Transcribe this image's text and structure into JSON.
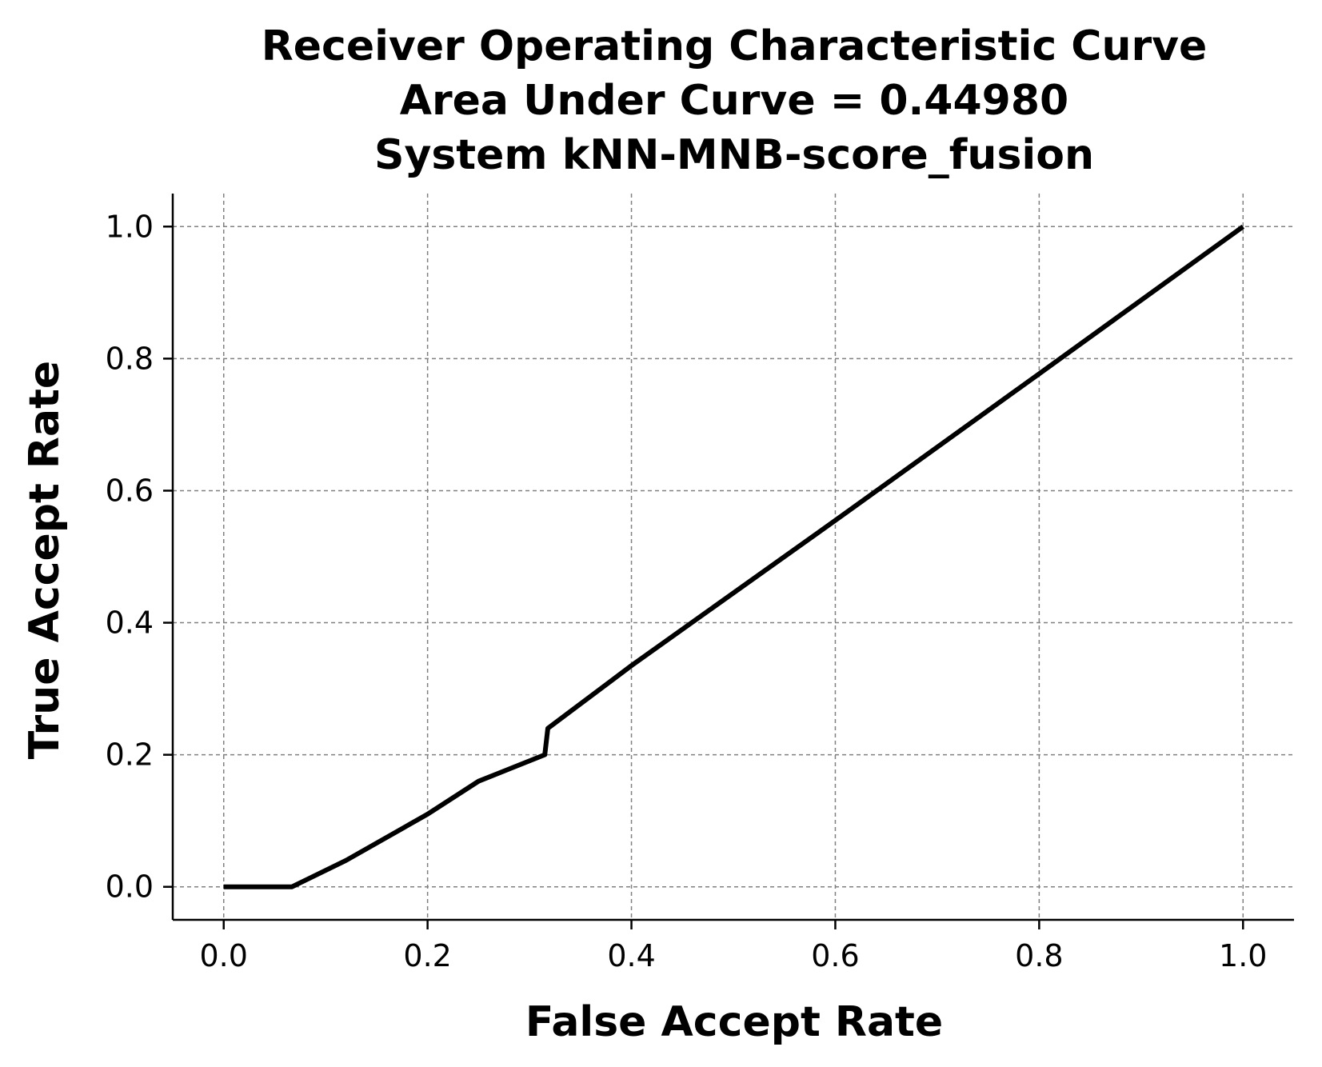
{
  "chart_data": {
    "type": "line",
    "title_lines": [
      "Receiver Operating Characteristic Curve",
      "Area Under Curve = 0.44980",
      "System kNN-MNB-score_fusion"
    ],
    "xlabel": "False Accept Rate",
    "ylabel": "True Accept Rate",
    "xlim": [
      -0.05,
      1.05
    ],
    "ylim": [
      -0.05,
      1.05
    ],
    "xticks": [
      0.0,
      0.2,
      0.4,
      0.6,
      0.8,
      1.0
    ],
    "yticks": [
      0.0,
      0.2,
      0.4,
      0.6,
      0.8,
      1.0
    ],
    "xtick_labels": [
      "0.0",
      "0.2",
      "0.4",
      "0.6",
      "0.8",
      "1.0"
    ],
    "ytick_labels": [
      "0.0",
      "0.2",
      "0.4",
      "0.6",
      "0.8",
      "1.0"
    ],
    "grid": true,
    "legend": "none",
    "series": [
      {
        "color": "#000000",
        "x": [
          0.0,
          0.067,
          0.12,
          0.2,
          0.25,
          0.315,
          0.318,
          0.4,
          0.6,
          0.8,
          1.0
        ],
        "y": [
          0.0,
          0.0,
          0.04,
          0.11,
          0.16,
          0.2,
          0.24,
          0.335,
          0.555,
          0.777,
          1.0
        ]
      }
    ]
  }
}
